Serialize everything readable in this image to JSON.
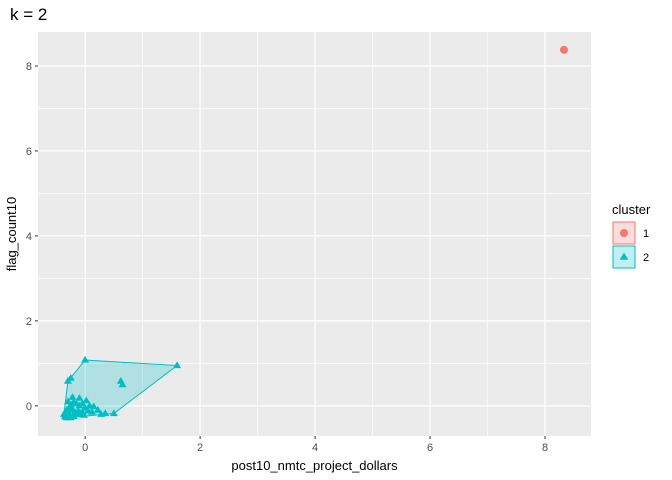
{
  "chart_data": {
    "type": "scatter",
    "title": "k = 2",
    "xlabel": "post10_nmtc_project_dollars",
    "ylabel": "flag_count10",
    "xlim": [
      -0.82,
      8.8
    ],
    "ylim": [
      -0.71,
      8.8
    ],
    "xticks": [
      0,
      2,
      4,
      6,
      8
    ],
    "yticks": [
      0,
      2,
      4,
      6,
      8
    ],
    "x_tick_labels": [
      "0",
      "2",
      "4",
      "6",
      "8"
    ],
    "y_tick_labels": [
      "0",
      "2",
      "4",
      "6",
      "8"
    ],
    "grid": true,
    "legend": {
      "title": "cluster",
      "placement": "right",
      "entries": [
        {
          "label": "1",
          "color": "#F8766D",
          "shape": "circle"
        },
        {
          "label": "2",
          "color": "#00BFC4",
          "shape": "triangle"
        }
      ]
    },
    "series": [
      {
        "name": "1",
        "color": "#F8766D",
        "shape": "circle",
        "points": [
          [
            8.33,
            8.38
          ]
        ]
      },
      {
        "name": "2",
        "color": "#00BFC4",
        "shape": "triangle",
        "hull": [
          [
            0.0,
            1.08
          ],
          [
            1.6,
            0.95
          ],
          [
            0.5,
            -0.18
          ],
          [
            -0.33,
            -0.28
          ],
          [
            -0.37,
            -0.2
          ],
          [
            -0.3,
            0.58
          ]
        ],
        "points": [
          [
            0.0,
            1.08
          ],
          [
            1.6,
            0.95
          ],
          [
            -0.3,
            0.58
          ],
          [
            -0.25,
            0.65
          ],
          [
            0.62,
            0.58
          ],
          [
            0.65,
            0.5
          ],
          [
            0.5,
            -0.18
          ],
          [
            0.35,
            -0.18
          ],
          [
            -0.33,
            -0.28
          ],
          [
            -0.37,
            -0.2
          ],
          [
            -0.3,
            0.1
          ],
          [
            -0.25,
            0.02
          ],
          [
            -0.2,
            0.08
          ],
          [
            -0.15,
            0.05
          ],
          [
            -0.1,
            0.0
          ],
          [
            -0.05,
            0.05
          ],
          [
            0.0,
            -0.05
          ],
          [
            0.08,
            0.0
          ],
          [
            0.15,
            -0.02
          ],
          [
            -0.28,
            -0.05
          ],
          [
            -0.22,
            -0.1
          ],
          [
            -0.18,
            -0.15
          ],
          [
            -0.12,
            -0.12
          ],
          [
            -0.08,
            -0.18
          ],
          [
            -0.3,
            -0.15
          ],
          [
            -0.35,
            -0.25
          ],
          [
            -0.27,
            -0.22
          ],
          [
            -0.2,
            -0.25
          ],
          [
            -0.15,
            -0.2
          ],
          [
            -0.05,
            -0.15
          ],
          [
            0.05,
            -0.12
          ],
          [
            0.12,
            -0.15
          ],
          [
            0.22,
            -0.1
          ],
          [
            0.28,
            -0.2
          ],
          [
            -0.1,
            0.18
          ],
          [
            0.02,
            0.12
          ],
          [
            -0.22,
            0.2
          ],
          [
            -0.32,
            -0.1
          ],
          [
            -0.25,
            -0.28
          ],
          [
            -0.02,
            -0.22
          ]
        ]
      }
    ]
  }
}
